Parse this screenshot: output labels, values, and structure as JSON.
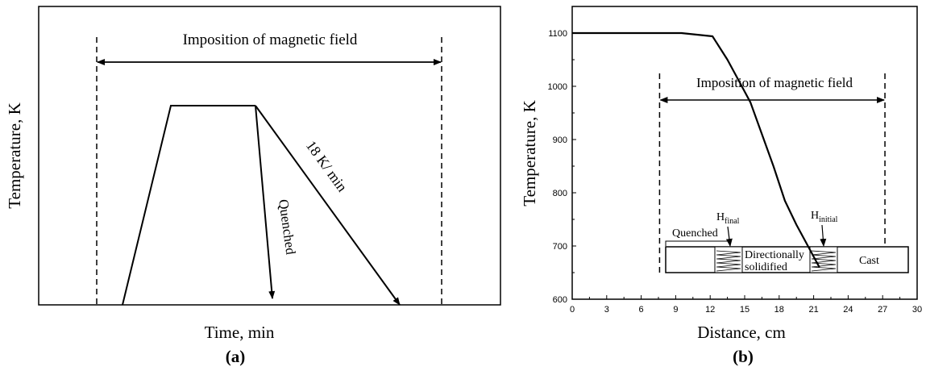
{
  "colors": {
    "ink": "#000000",
    "background": "#ffffff"
  },
  "chart_data": [
    {
      "type": "line",
      "panel_label": "(a)",
      "xlabel": "Time, min",
      "ylabel": "Temperature, K",
      "axis_ticks": "none",
      "annotation_top": "Imposition of magnetic field",
      "series": [
        {
          "label": "",
          "points": [
            [
              0.0,
              0.0
            ],
            [
              0.16,
              0.87
            ],
            [
              0.4,
              0.87
            ],
            [
              0.88,
              0.0
            ]
          ]
        },
        {
          "label": "18 K/ min",
          "points": [
            [
              0.4,
              0.87
            ],
            [
              0.88,
              0.0
            ]
          ]
        },
        {
          "label": "Quenched",
          "points": [
            [
              0.4,
              0.87
            ],
            [
              0.44,
              0.0
            ]
          ]
        }
      ],
      "field_span_x": [
        -0.07,
        0.9
      ]
    },
    {
      "type": "line",
      "panel_label": "(b)",
      "xlabel": "Distance, cm",
      "ylabel": "Temperature, K",
      "xlim": [
        0,
        30
      ],
      "ylim": [
        600,
        1150
      ],
      "xticks": [
        0,
        3,
        6,
        9,
        12,
        15,
        18,
        21,
        24,
        27,
        30
      ],
      "xtick_labels": [
        "0",
        "3",
        "6",
        "9",
        "12",
        "15",
        "18",
        "21",
        "24",
        "27",
        "30"
      ],
      "yticks": [
        600,
        700,
        800,
        900,
        1000,
        1100
      ],
      "ytick_labels": [
        "600",
        "700",
        "800",
        "900",
        "1000",
        "1100"
      ],
      "annotation_top": "Imposition of magnetic field",
      "field_span_x": [
        7.6,
        27.2
      ],
      "series": [
        {
          "name": "",
          "x": [
            0,
            9.5,
            12.2,
            13.5,
            14.5,
            15.5,
            16.5,
            17.5,
            18.5,
            19.5,
            20.5,
            21.5
          ],
          "y": [
            1100,
            1100,
            1094,
            1050,
            1010,
            970,
            910,
            850,
            785,
            740,
            700,
            660
          ]
        }
      ],
      "inset": {
        "labels": {
          "quenched": "Quenched",
          "h_final_base": "H",
          "h_final_sub": "final",
          "h_initial_base": "H",
          "h_initial_sub": "initial",
          "directional_line1": "Directionally",
          "directional_line2": "solidified",
          "cast": "Cast"
        }
      }
    }
  ]
}
